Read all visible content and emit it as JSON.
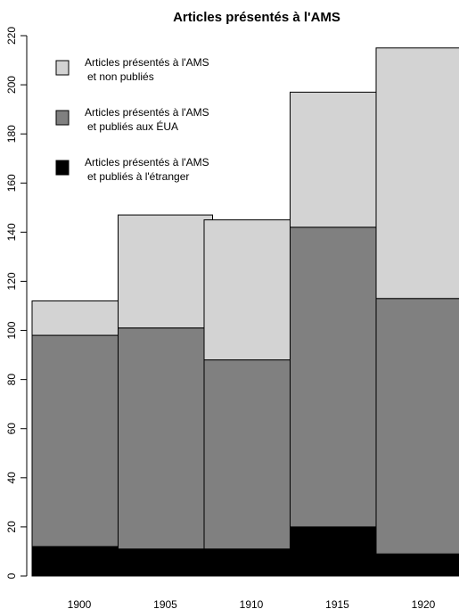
{
  "chart_data": {
    "type": "bar",
    "stacked": true,
    "title": "Articles présentés à l'AMS",
    "xlabel": "",
    "ylabel": "",
    "categories": [
      "1900",
      "1905",
      "1910",
      "1915",
      "1920"
    ],
    "ylim": [
      0,
      220
    ],
    "yticks": [
      0,
      20,
      40,
      60,
      80,
      100,
      120,
      140,
      160,
      180,
      200,
      220
    ],
    "grid": false,
    "legend_position": "top-left",
    "series": [
      {
        "name_lines": [
          "Articles présentés à l'AMS",
          "et publiés à l'étranger"
        ],
        "color": "#000000",
        "values": [
          12,
          11,
          11,
          20,
          9
        ]
      },
      {
        "name_lines": [
          "Articles présentés à l'AMS",
          "et publiés aux ÉUA"
        ],
        "color": "#808080",
        "values": [
          86,
          90,
          77,
          122,
          104
        ]
      },
      {
        "name_lines": [
          "Articles présentés à l'AMS",
          "et non publiés"
        ],
        "color": "#d3d3d3",
        "values": [
          14,
          46,
          57,
          55,
          102
        ]
      }
    ],
    "legend_order": [
      2,
      1,
      0
    ]
  }
}
